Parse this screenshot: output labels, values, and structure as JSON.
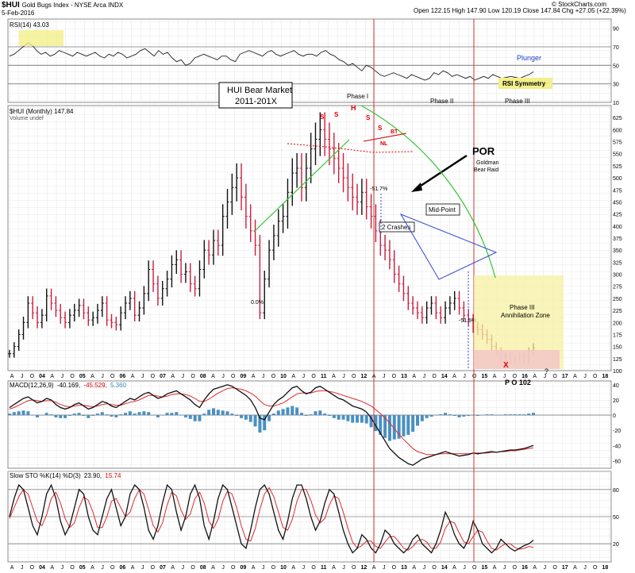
{
  "header": {
    "symbol": "$HUI",
    "name": "Gold Bugs Index - NYSE Arca INDX",
    "date": "5-Feb-2016",
    "stats": "Open 122.15  High 147.90  Low 120.19  Close 147.84  Chg +27.05 (+22.39%)",
    "brand": "© StockCharts.com"
  },
  "chart_data": [
    {
      "panel": "rsi",
      "type": "line",
      "label": "RSI(14) 43.03",
      "ylim": [
        10,
        100
      ],
      "y_ticks": [
        90,
        70,
        50,
        30,
        10
      ],
      "bands": [
        70,
        50,
        30
      ],
      "values": [
        60,
        62,
        66,
        70,
        74,
        72,
        66,
        62,
        64,
        60,
        62,
        66,
        64,
        62,
        60,
        64,
        62,
        60,
        62,
        64,
        60,
        58,
        62,
        60,
        64,
        62,
        58,
        60,
        62,
        66,
        68,
        64,
        60,
        66,
        62,
        64,
        58,
        54,
        56,
        50,
        52,
        58,
        60,
        62,
        60,
        58,
        56,
        60,
        60,
        56,
        54,
        62,
        64,
        66,
        64,
        62,
        60,
        64,
        66,
        62,
        60,
        62,
        64,
        66,
        62,
        60,
        62,
        62,
        60,
        64,
        66,
        62,
        60,
        56,
        54,
        50,
        52,
        48,
        44,
        50,
        48,
        44,
        40,
        38,
        40,
        42,
        40,
        38,
        36,
        40,
        38,
        36,
        34,
        36,
        42,
        40,
        44,
        42,
        38,
        40,
        38,
        36,
        38,
        34,
        36,
        38,
        36,
        40,
        38,
        36,
        37,
        38,
        37,
        36,
        38,
        40,
        43
      ],
      "annotations": [
        "Plunger",
        "RSI Symmetry"
      ]
    },
    {
      "panel": "price",
      "type": "candlestick-line",
      "label": "$HUI (Monthly) 147.84",
      "volume_label": "Volume undef",
      "title": "HUI Bear Market",
      "subtitle": "2011-201X",
      "ylim": [
        100,
        650
      ],
      "y_ticks": [
        625,
        600,
        575,
        550,
        525,
        500,
        475,
        450,
        425,
        400,
        375,
        350,
        325,
        300,
        275,
        250,
        225,
        200,
        175,
        150,
        125,
        100
      ],
      "close": [
        135,
        150,
        175,
        200,
        240,
        220,
        200,
        215,
        255,
        240,
        225,
        210,
        200,
        215,
        225,
        235,
        220,
        205,
        210,
        225,
        240,
        205,
        200,
        195,
        220,
        240,
        250,
        215,
        230,
        260,
        310,
        280,
        250,
        270,
        290,
        320,
        330,
        300,
        305,
        280,
        270,
        310,
        350,
        340,
        370,
        360,
        420,
        450,
        480,
        500,
        460,
        420,
        390,
        360,
        220,
        290,
        350,
        380,
        410,
        420,
        470,
        510,
        520,
        480,
        520,
        560,
        580,
        600,
        580,
        560,
        540,
        520,
        500,
        480,
        460,
        450,
        470,
        440,
        420,
        390,
        360,
        350,
        330,
        300,
        280,
        260,
        240,
        230,
        220,
        210,
        230,
        240,
        220,
        210,
        230,
        240,
        250,
        230,
        215,
        205,
        190,
        185,
        175,
        165,
        150,
        140,
        130,
        130,
        120,
        125,
        130,
        120,
        140,
        148
      ],
      "x_ticks": [
        "A",
        "J",
        "O",
        "04",
        "A",
        "J",
        "O",
        "05",
        "A",
        "J",
        "O",
        "06",
        "A",
        "J",
        "O",
        "07",
        "A",
        "J",
        "O",
        "08",
        "A",
        "J",
        "O",
        "09",
        "A",
        "J",
        "O",
        "10",
        "A",
        "J",
        "O",
        "11",
        "A",
        "J",
        "O",
        "12",
        "A",
        "J",
        "O",
        "13",
        "A",
        "J",
        "O",
        "14",
        "A",
        "J",
        "O",
        "15",
        "A",
        "J",
        "O",
        "16",
        "A",
        "J",
        "O",
        "17",
        "A",
        "J",
        "O",
        "18"
      ],
      "annotations": {
        "phase1": "Phase I",
        "phase2": "Phase II",
        "phase3": "Phase III",
        "s1": "S",
        "s2": "S",
        "h": "H",
        "s3": "S",
        "s4": "S",
        "nl": "NL",
        "bt": "BT",
        "por": "POR",
        "goldman1": "Goldman",
        "goldman2": "Bear Raid",
        "pct1": "-51.7%",
        "pct2": "-51.5%",
        "crashes": "2 Crashes",
        "midpoint": "Mid-Point",
        "zone1": "Phase III",
        "zone2": "Annihilation Zone",
        "x": "X",
        "q": "?",
        "zero": "0.0%",
        "po": "P O 102"
      }
    },
    {
      "panel": "macd",
      "type": "line+histogram",
      "label_main": "MACD(12,26,9)",
      "label_v1": "-40.169,",
      "label_v2": "-45.529,",
      "label_v3": "5.360",
      "ylim": [
        -70,
        45
      ],
      "y_ticks": [
        40,
        20,
        0,
        -20,
        -40,
        -60
      ],
      "macd": [
        10,
        14,
        18,
        22,
        24,
        20,
        16,
        18,
        22,
        20,
        14,
        10,
        8,
        10,
        14,
        16,
        12,
        8,
        10,
        14,
        18,
        16,
        12,
        10,
        14,
        18,
        22,
        20,
        24,
        28,
        30,
        26,
        22,
        24,
        28,
        30,
        32,
        28,
        24,
        20,
        14,
        10,
        20,
        28,
        34,
        36,
        38,
        40,
        38,
        34,
        30,
        26,
        20,
        10,
        -4,
        -6,
        4,
        14,
        20,
        24,
        30,
        36,
        38,
        32,
        28,
        30,
        36,
        38,
        34,
        30,
        26,
        22,
        20,
        16,
        12,
        10,
        8,
        4,
        -4,
        -14,
        -24,
        -34,
        -44,
        -50,
        -56,
        -60,
        -64,
        -66,
        -62,
        -58,
        -56,
        -54,
        -52,
        -50,
        -48,
        -50,
        -52,
        -54,
        -53,
        -52,
        -50,
        -51,
        -50,
        -49,
        -48,
        -49,
        -48,
        -47,
        -46,
        -46,
        -45,
        -44,
        -42,
        -40
      ],
      "signal": [
        8,
        10,
        13,
        16,
        19,
        20,
        19,
        18,
        19,
        19,
        17,
        14,
        12,
        11,
        12,
        13,
        13,
        12,
        11,
        12,
        14,
        15,
        14,
        13,
        13,
        15,
        17,
        18,
        20,
        23,
        26,
        26,
        25,
        24,
        25,
        27,
        28,
        28,
        27,
        25,
        22,
        18,
        18,
        21,
        25,
        29,
        32,
        35,
        36,
        35,
        34,
        32,
        29,
        25,
        19,
        14,
        12,
        12,
        14,
        16,
        20,
        24,
        28,
        29,
        29,
        29,
        31,
        32,
        32,
        31,
        30,
        28,
        26,
        24,
        22,
        20,
        18,
        15,
        12,
        7,
        2,
        -4,
        -10,
        -18,
        -25,
        -32,
        -38,
        -44,
        -48,
        -50,
        -52,
        -52,
        -52,
        -51,
        -51,
        -51,
        -51,
        -51,
        -51,
        -51,
        -50,
        -50,
        -50,
        -50,
        -49,
        -49,
        -48,
        -48,
        -47,
        -47,
        -46,
        -45,
        -44,
        -43
      ],
      "zero_label": "0"
    },
    {
      "panel": "sto",
      "type": "line",
      "label_main": "Slow STO %K(14) %D(3)",
      "label_k": "23.90,",
      "label_d": "15.74",
      "ylim": [
        0,
        100
      ],
      "y_ticks": [
        80,
        50,
        20
      ],
      "k": [
        50,
        70,
        85,
        80,
        60,
        40,
        30,
        50,
        75,
        85,
        70,
        45,
        30,
        40,
        60,
        80,
        75,
        50,
        35,
        30,
        50,
        70,
        80,
        60,
        40,
        50,
        75,
        85,
        80,
        60,
        35,
        25,
        40,
        65,
        85,
        80,
        55,
        35,
        50,
        75,
        85,
        70,
        40,
        25,
        45,
        70,
        85,
        80,
        60,
        40,
        20,
        15,
        35,
        60,
        80,
        85,
        75,
        55,
        35,
        25,
        45,
        70,
        85,
        85,
        70,
        50,
        35,
        45,
        65,
        80,
        75,
        55,
        35,
        20,
        10,
        15,
        30,
        25,
        15,
        10,
        20,
        35,
        30,
        20,
        15,
        10,
        15,
        25,
        30,
        20,
        15,
        10,
        20,
        35,
        55,
        45,
        30,
        20,
        15,
        25,
        45,
        35,
        20,
        15,
        10,
        15,
        25,
        20,
        15,
        12,
        15,
        18,
        20,
        24
      ],
      "d": [
        48,
        60,
        72,
        80,
        75,
        60,
        45,
        40,
        52,
        70,
        77,
        65,
        48,
        38,
        43,
        60,
        72,
        68,
        55,
        38,
        38,
        50,
        67,
        70,
        60,
        50,
        55,
        70,
        80,
        75,
        58,
        40,
        33,
        43,
        63,
        77,
        73,
        57,
        47,
        53,
        70,
        77,
        65,
        45,
        37,
        47,
        67,
        78,
        75,
        60,
        40,
        25,
        23,
        37,
        58,
        75,
        82,
        72,
        55,
        38,
        35,
        47,
        67,
        80,
        80,
        68,
        52,
        43,
        48,
        63,
        73,
        70,
        55,
        37,
        22,
        15,
        18,
        23,
        23,
        17,
        15,
        22,
        28,
        28,
        22,
        15,
        13,
        17,
        23,
        25,
        22,
        15,
        15,
        22,
        37,
        45,
        43,
        32,
        22,
        20,
        28,
        35,
        33,
        23,
        15,
        13,
        17,
        20,
        20,
        16,
        14,
        15,
        17,
        16
      ]
    }
  ]
}
